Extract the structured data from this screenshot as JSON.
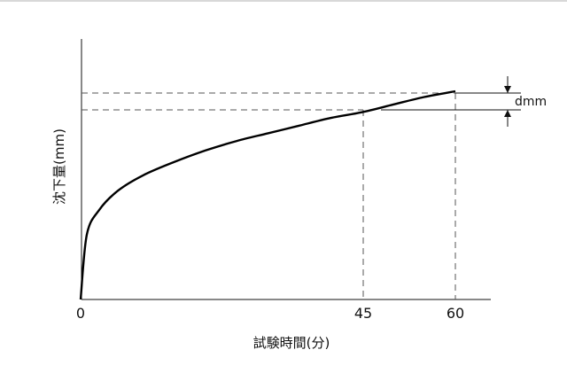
{
  "figure": {
    "y_axis_label": "沈下量(mm)",
    "x_axis_label": "試験時間(分)",
    "delta_label": "dmm",
    "x_ticks": [
      "0",
      "45",
      "60"
    ]
  },
  "chart_data": {
    "type": "line",
    "xlabel": "試験時間(分)",
    "ylabel": "沈下量(mm)",
    "x_ticks": [
      0,
      45,
      60
    ],
    "annotation": "dmm",
    "series": [
      {
        "x": [
          0,
          1,
          3,
          6,
          10,
          15,
          20,
          25,
          30,
          35,
          40,
          45,
          50,
          55,
          60
        ],
        "values": [
          0,
          0.34,
          0.47,
          0.57,
          0.65,
          0.72,
          0.78,
          0.83,
          0.87,
          0.91,
          0.95,
          0.98,
          1.02,
          1.06,
          1.09
        ]
      }
    ]
  }
}
